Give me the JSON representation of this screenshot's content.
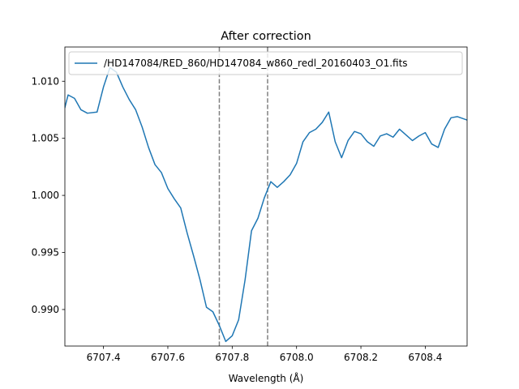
{
  "chart_data": {
    "type": "line",
    "title": "After correction",
    "xlabel": "Wavelength (Å)",
    "ylabel": "",
    "xlim": [
      6707.28,
      6708.53
    ],
    "ylim": [
      0.9868,
      1.013
    ],
    "x_ticks": [
      {
        "value": 6707.4,
        "label": "6707.4"
      },
      {
        "value": 6707.6,
        "label": "6707.6"
      },
      {
        "value": 6707.8,
        "label": "6707.8"
      },
      {
        "value": 6708.0,
        "label": "6708.0"
      },
      {
        "value": 6708.2,
        "label": "6708.2"
      },
      {
        "value": 6708.4,
        "label": "6708.4"
      }
    ],
    "y_ticks": [
      {
        "value": 0.99,
        "label": "0.990"
      },
      {
        "value": 0.995,
        "label": "0.995"
      },
      {
        "value": 1.0,
        "label": "1.000"
      },
      {
        "value": 1.005,
        "label": "1.005"
      },
      {
        "value": 1.01,
        "label": "1.010"
      }
    ],
    "grid": false,
    "legend_position": "top-right",
    "series": [
      {
        "name": "/HD147084/RED_860/HD147084_w860_redl_20160403_O1.fits",
        "color": "#1f77b4",
        "x": [
          6707.28,
          6707.29,
          6707.31,
          6707.33,
          6707.35,
          6707.38,
          6707.4,
          6707.42,
          6707.44,
          6707.46,
          6707.48,
          6707.5,
          6707.52,
          6707.54,
          6707.56,
          6707.58,
          6707.6,
          6707.62,
          6707.64,
          6707.66,
          6707.68,
          6707.7,
          6707.72,
          6707.74,
          6707.76,
          6707.78,
          6707.8,
          6707.82,
          6707.84,
          6707.86,
          6707.88,
          6707.9,
          6707.92,
          6707.94,
          6707.96,
          6707.98,
          6708.0,
          6708.02,
          6708.04,
          6708.06,
          6708.08,
          6708.1,
          6708.12,
          6708.14,
          6708.16,
          6708.18,
          6708.2,
          6708.22,
          6708.24,
          6708.26,
          6708.28,
          6708.3,
          6708.32,
          6708.34,
          6708.36,
          6708.38,
          6708.4,
          6708.42,
          6708.44,
          6708.46,
          6708.48,
          6708.5,
          6708.53
        ],
        "y": [
          1.0077,
          1.0088,
          1.0085,
          1.0075,
          1.0072,
          1.0073,
          1.0095,
          1.0112,
          1.0108,
          1.0095,
          1.0084,
          1.0075,
          1.006,
          1.0042,
          1.0027,
          1.002,
          1.0006,
          0.9997,
          0.9989,
          0.9967,
          0.9947,
          0.9926,
          0.9902,
          0.9898,
          0.9886,
          0.9872,
          0.9877,
          0.9891,
          0.9926,
          0.9969,
          0.998,
          0.9998,
          1.0012,
          1.0007,
          1.0012,
          1.0018,
          1.0028,
          1.0047,
          1.0055,
          1.0058,
          1.0064,
          1.0073,
          1.0047,
          1.0033,
          1.0048,
          1.0056,
          1.0054,
          1.0047,
          1.0043,
          1.0052,
          1.0054,
          1.0051,
          1.0058,
          1.0053,
          1.0048,
          1.0052,
          1.0055,
          1.0045,
          1.0042,
          1.0058,
          1.0068,
          1.0069,
          1.0066
        ]
      }
    ],
    "vlines": [
      {
        "x": 6707.76,
        "style": "dashed",
        "color": "#808080"
      },
      {
        "x": 6707.91,
        "style": "dashed",
        "color": "#808080"
      }
    ]
  }
}
